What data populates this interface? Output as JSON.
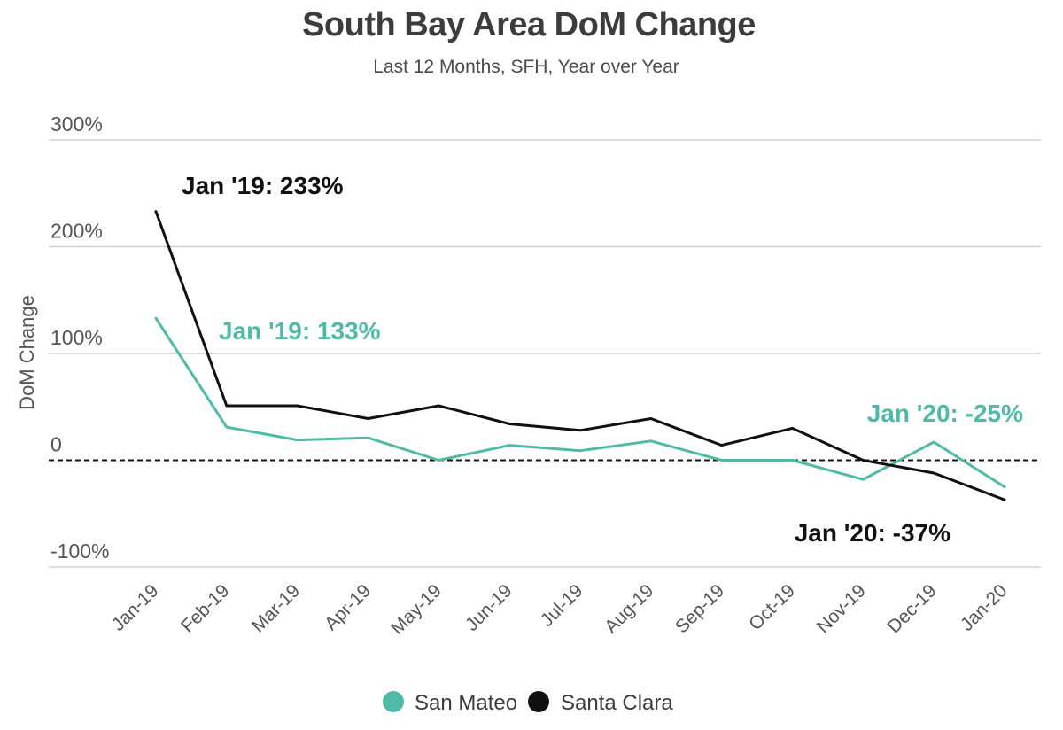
{
  "chart_data": {
    "type": "line",
    "title": "South Bay Area DoM Change",
    "subtitle": "Last 12 Months, SFH, Year over Year",
    "ylabel": "DoM Change",
    "xlabel": "",
    "ylim": [
      -100,
      300
    ],
    "yticks": [
      {
        "value": 300,
        "label": "300%"
      },
      {
        "value": 200,
        "label": "200%"
      },
      {
        "value": 100,
        "label": "100%"
      },
      {
        "value": 0,
        "label": "0"
      },
      {
        "value": -100,
        "label": "-100%"
      }
    ],
    "grid": true,
    "categories": [
      "Jan-19",
      "Feb-19",
      "Mar-19",
      "Apr-19",
      "May-19",
      "Jun-19",
      "Jul-19",
      "Aug-19",
      "Sep-19",
      "Oct-19",
      "Nov-19",
      "Dec-19",
      "Jan-20"
    ],
    "series": [
      {
        "name": "San Mateo",
        "color": "#4fbaa5",
        "values": [
          133,
          31,
          19,
          21,
          0,
          14,
          9,
          18,
          0,
          0,
          -18,
          17,
          -25
        ]
      },
      {
        "name": "Santa Clara",
        "color": "#111111",
        "values": [
          233,
          51,
          51,
          39,
          51,
          34,
          28,
          39,
          14,
          30,
          0,
          -12,
          -37
        ]
      }
    ],
    "annotations": [
      {
        "text": "Jan '19: 233%",
        "series": "Santa Clara",
        "color": "#111111"
      },
      {
        "text": "Jan '19: 133%",
        "series": "San Mateo",
        "color": "#4fbaa5"
      },
      {
        "text": "Jan '20: -25%",
        "series": "San Mateo",
        "color": "#4fbaa5"
      },
      {
        "text": "Jan '20: -37%",
        "series": "Santa Clara",
        "color": "#111111"
      }
    ],
    "legend": {
      "position": "bottom-center",
      "items": [
        {
          "label": "San Mateo",
          "color": "#4fbaa5"
        },
        {
          "label": "Santa Clara",
          "color": "#111111"
        }
      ]
    }
  }
}
